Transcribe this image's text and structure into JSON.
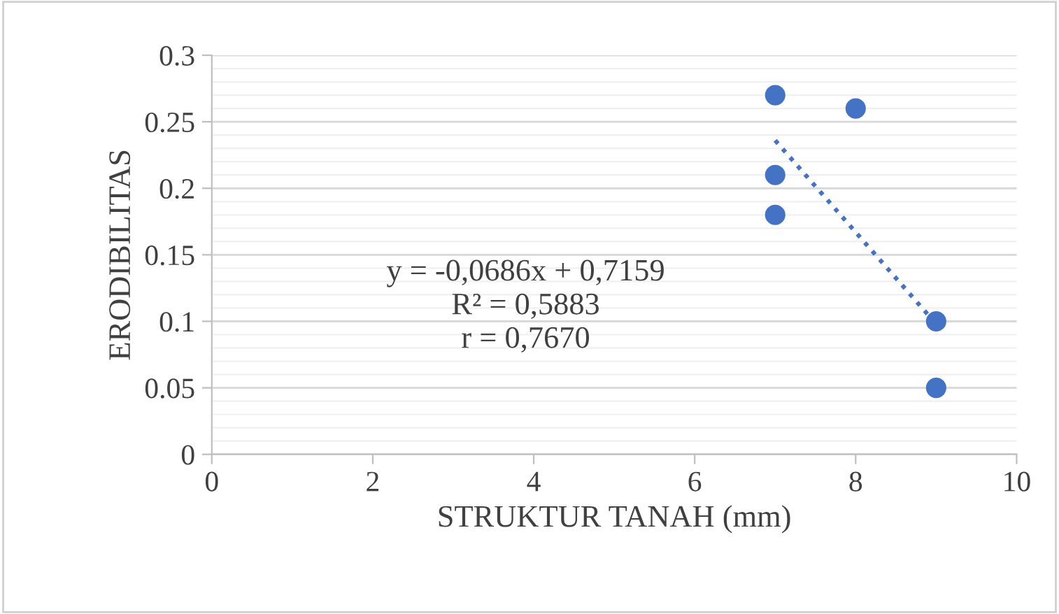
{
  "chart_data": {
    "type": "scatter",
    "xlabel": "STRUKTUR TANAH (mm)",
    "ylabel": "ERODIBILITAS",
    "series": [
      {
        "color": "#4472c4",
        "marker": "circle",
        "x": [
          7,
          8,
          7,
          7,
          9,
          9
        ],
        "values": [
          0.27,
          0.26,
          0.21,
          0.18,
          0.1,
          0.05
        ]
      },
      {
        "type": "line",
        "color": "#4472c4",
        "line_style": "dotted",
        "marker": "none",
        "x": [
          7,
          9
        ],
        "values": [
          0.236,
          0.098
        ]
      }
    ],
    "annotations": [
      "y = -0,0686x + 0,7159\nR² = 0,5883\nr = 0,7670"
    ],
    "xlim": [
      0,
      10
    ],
    "xticks": [
      0,
      2,
      4,
      6,
      8,
      10
    ],
    "ylim": [
      0,
      0.3
    ],
    "yticks": [
      0,
      0.05,
      0.1,
      0.15,
      0.2,
      0.25,
      0.3
    ],
    "grid": "y",
    "legend": false
  }
}
